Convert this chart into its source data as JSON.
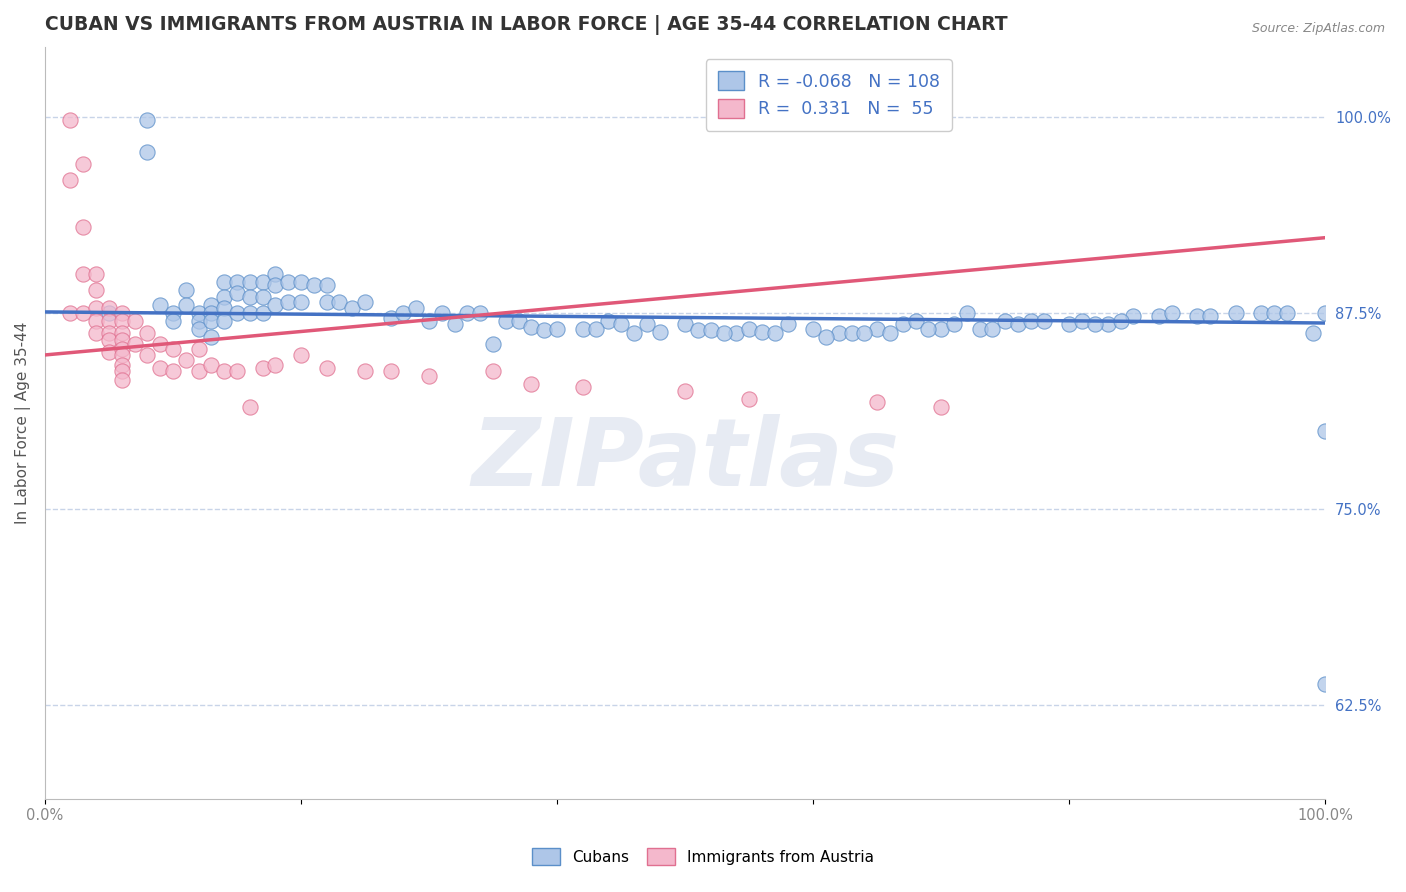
{
  "title": "CUBAN VS IMMIGRANTS FROM AUSTRIA IN LABOR FORCE | AGE 35-44 CORRELATION CHART",
  "source_text": "Source: ZipAtlas.com",
  "ylabel": "In Labor Force | Age 35-44",
  "right_yticks": [
    0.625,
    0.75,
    0.875,
    1.0
  ],
  "right_yticklabels": [
    "62.5%",
    "75.0%",
    "87.5%",
    "100.0%"
  ],
  "xtick_positions": [
    0.0,
    0.2,
    0.4,
    0.6,
    0.8,
    1.0
  ],
  "xtick_labels": [
    "0.0%",
    "",
    "",
    "",
    "",
    "100.0%"
  ],
  "xmin": 0.0,
  "xmax": 1.0,
  "ymin": 0.565,
  "ymax": 1.045,
  "blue_color": "#aec6e8",
  "blue_edge_color": "#5b8fc9",
  "blue_line_color": "#4472c4",
  "pink_color": "#f4b8cc",
  "pink_edge_color": "#e07090",
  "pink_line_color": "#e05878",
  "R_blue": -0.068,
  "R_pink": 0.331,
  "N_blue": 108,
  "N_pink": 55,
  "watermark_text": "ZIPatlas",
  "blue_scatter_x": [
    0.05,
    0.08,
    0.08,
    0.09,
    0.1,
    0.1,
    0.11,
    0.11,
    0.12,
    0.12,
    0.12,
    0.13,
    0.13,
    0.13,
    0.13,
    0.14,
    0.14,
    0.14,
    0.14,
    0.15,
    0.15,
    0.15,
    0.16,
    0.16,
    0.16,
    0.17,
    0.17,
    0.17,
    0.18,
    0.18,
    0.18,
    0.19,
    0.19,
    0.2,
    0.2,
    0.21,
    0.22,
    0.22,
    0.23,
    0.24,
    0.25,
    0.27,
    0.28,
    0.29,
    0.3,
    0.31,
    0.33,
    0.34,
    0.35,
    0.36,
    0.37,
    0.38,
    0.39,
    0.4,
    0.42,
    0.44,
    0.45,
    0.47,
    0.48,
    0.5,
    0.51,
    0.52,
    0.54,
    0.55,
    0.56,
    0.57,
    0.58,
    0.6,
    0.62,
    0.63,
    0.65,
    0.67,
    0.68,
    0.7,
    0.72,
    0.73,
    0.75,
    0.76,
    0.77,
    0.78,
    0.8,
    0.81,
    0.83,
    0.85,
    0.87,
    0.88,
    0.9,
    0.91,
    0.93,
    0.95,
    0.96,
    0.97,
    0.99,
    1.0,
    1.0,
    1.0,
    0.32,
    0.43,
    0.46,
    0.53,
    0.61,
    0.64,
    0.66,
    0.69,
    0.71,
    0.74,
    0.82,
    0.84
  ],
  "blue_scatter_y": [
    0.875,
    0.998,
    0.978,
    0.88,
    0.875,
    0.87,
    0.89,
    0.88,
    0.875,
    0.87,
    0.865,
    0.88,
    0.875,
    0.87,
    0.86,
    0.895,
    0.885,
    0.878,
    0.87,
    0.895,
    0.888,
    0.875,
    0.895,
    0.885,
    0.875,
    0.895,
    0.885,
    0.875,
    0.9,
    0.893,
    0.88,
    0.895,
    0.882,
    0.895,
    0.882,
    0.893,
    0.893,
    0.882,
    0.882,
    0.878,
    0.882,
    0.872,
    0.875,
    0.878,
    0.87,
    0.875,
    0.875,
    0.875,
    0.855,
    0.87,
    0.87,
    0.866,
    0.864,
    0.865,
    0.865,
    0.87,
    0.868,
    0.868,
    0.863,
    0.868,
    0.864,
    0.864,
    0.862,
    0.865,
    0.863,
    0.862,
    0.868,
    0.865,
    0.862,
    0.862,
    0.865,
    0.868,
    0.87,
    0.865,
    0.875,
    0.865,
    0.87,
    0.868,
    0.87,
    0.87,
    0.868,
    0.87,
    0.868,
    0.873,
    0.873,
    0.875,
    0.873,
    0.873,
    0.875,
    0.875,
    0.875,
    0.875,
    0.862,
    0.638,
    0.8,
    0.875,
    0.868,
    0.865,
    0.862,
    0.862,
    0.86,
    0.862,
    0.862,
    0.865,
    0.868,
    0.865,
    0.868,
    0.87
  ],
  "pink_scatter_x": [
    0.02,
    0.02,
    0.02,
    0.03,
    0.03,
    0.03,
    0.03,
    0.04,
    0.04,
    0.04,
    0.04,
    0.04,
    0.05,
    0.05,
    0.05,
    0.05,
    0.05,
    0.06,
    0.06,
    0.06,
    0.06,
    0.06,
    0.06,
    0.06,
    0.06,
    0.06,
    0.07,
    0.07,
    0.08,
    0.08,
    0.09,
    0.09,
    0.1,
    0.1,
    0.11,
    0.12,
    0.12,
    0.13,
    0.14,
    0.15,
    0.16,
    0.17,
    0.18,
    0.2,
    0.22,
    0.25,
    0.27,
    0.3,
    0.35,
    0.38,
    0.42,
    0.5,
    0.55,
    0.65,
    0.7
  ],
  "pink_scatter_y": [
    0.998,
    0.96,
    0.875,
    0.97,
    0.93,
    0.9,
    0.875,
    0.9,
    0.89,
    0.878,
    0.87,
    0.862,
    0.878,
    0.87,
    0.862,
    0.858,
    0.85,
    0.875,
    0.87,
    0.862,
    0.858,
    0.852,
    0.848,
    0.842,
    0.838,
    0.832,
    0.87,
    0.855,
    0.862,
    0.848,
    0.855,
    0.84,
    0.852,
    0.838,
    0.845,
    0.852,
    0.838,
    0.842,
    0.838,
    0.838,
    0.815,
    0.84,
    0.842,
    0.848,
    0.84,
    0.838,
    0.838,
    0.835,
    0.838,
    0.83,
    0.828,
    0.825,
    0.82,
    0.818,
    0.815
  ],
  "grid_color": "#c8d4e8",
  "background_color": "#ffffff",
  "title_color": "#333333",
  "tick_color_x": "#888888",
  "tick_color_y": "#4472c4",
  "ylabel_color": "#555555",
  "title_fontsize": 13.5,
  "axis_label_fontsize": 11,
  "tick_fontsize": 10.5,
  "legend_fontsize": 12.5
}
